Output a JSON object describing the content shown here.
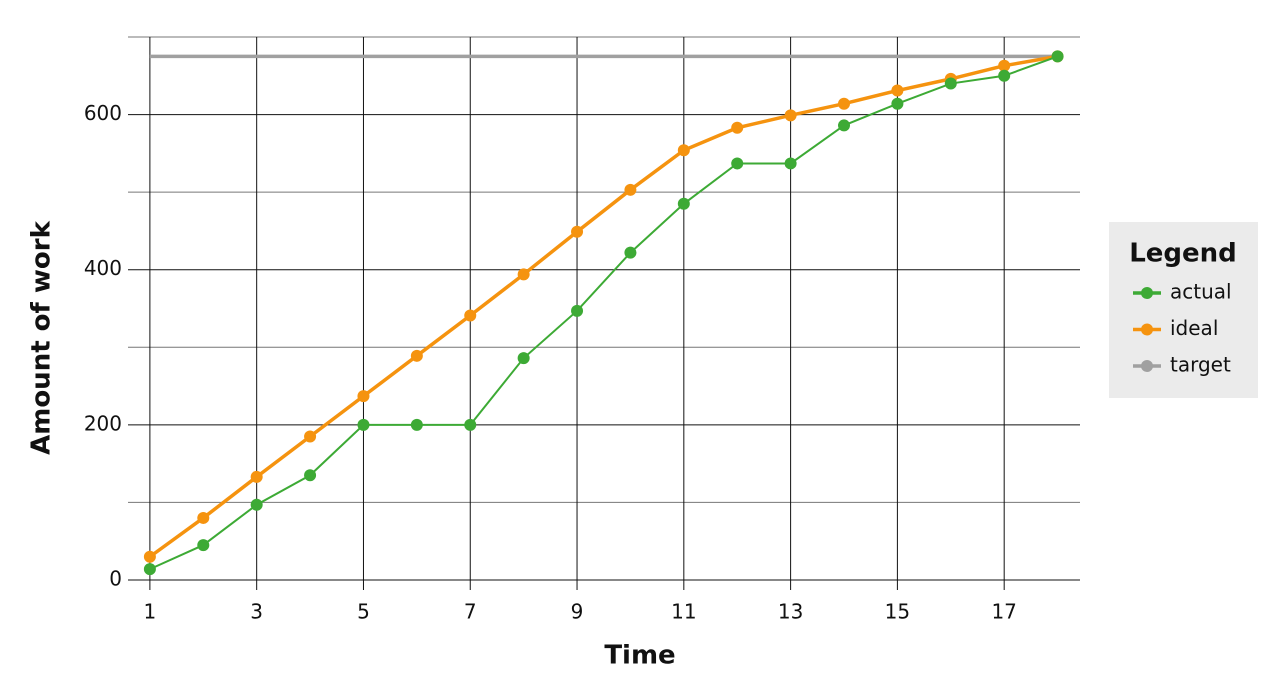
{
  "chart_data": {
    "type": "line",
    "x_label": "Time",
    "y_label": "Amount of work",
    "x": [
      1,
      2,
      3,
      4,
      5,
      6,
      7,
      8,
      9,
      10,
      11,
      12,
      13,
      14,
      15,
      16,
      17,
      18
    ],
    "series": [
      {
        "name": "actual",
        "color": "#3daa35",
        "values": [
          14,
          45,
          97,
          135,
          200,
          200,
          200,
          286,
          347,
          422,
          485,
          537,
          537,
          586,
          614,
          640,
          650,
          675
        ]
      },
      {
        "name": "ideal",
        "color": "#f5930f",
        "values": [
          30,
          80,
          133,
          185,
          237,
          289,
          341,
          394,
          449,
          503,
          554,
          583,
          599,
          614,
          631,
          646,
          663,
          675
        ]
      },
      {
        "name": "target",
        "color": "#a0a0a0",
        "values": [
          675,
          675,
          675,
          675,
          675,
          675,
          675,
          675,
          675,
          675,
          675,
          675,
          675,
          675,
          675,
          675,
          675,
          675
        ]
      }
    ],
    "xlim": [
      0.59,
      18.42
    ],
    "ylim": [
      0,
      700
    ],
    "xticks": [
      1,
      3,
      5,
      7,
      9,
      11,
      13,
      15,
      17
    ],
    "yticks": [
      0,
      200,
      400,
      600
    ],
    "yminor": [
      100,
      300,
      500,
      700
    ],
    "grid": true,
    "legend_title": "Legend",
    "legend_position": "right"
  }
}
